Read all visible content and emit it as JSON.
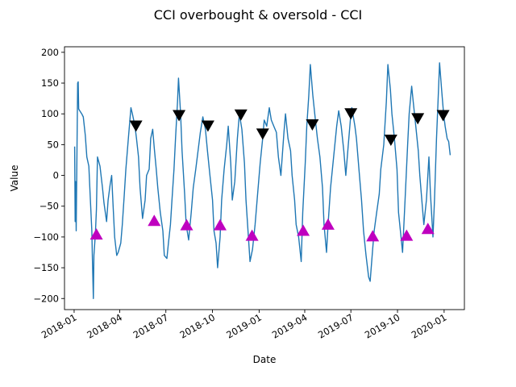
{
  "chart_data": {
    "type": "line",
    "title": "CCI overbought & oversold - CCI",
    "xlabel": "Date",
    "ylabel": "Value",
    "ylim": [
      -218,
      209
    ],
    "xlim": [
      "2017-12-13",
      "2020-02-10"
    ],
    "yticks": [
      200,
      150,
      100,
      50,
      0,
      -50,
      -100,
      -150,
      -200
    ],
    "xticks": [
      {
        "date": "2018-01-01",
        "label": "2018-01"
      },
      {
        "date": "2018-04-01",
        "label": "2018-04"
      },
      {
        "date": "2018-07-01",
        "label": "2018-07"
      },
      {
        "date": "2018-10-01",
        "label": "2018-10"
      },
      {
        "date": "2019-01-01",
        "label": "2019-01"
      },
      {
        "date": "2019-04-01",
        "label": "2019-04"
      },
      {
        "date": "2019-07-01",
        "label": "2019-07"
      },
      {
        "date": "2019-10-01",
        "label": "2019-10"
      },
      {
        "date": "2020-01-01",
        "label": "2020-01"
      }
    ],
    "grid": false,
    "colors": {
      "line": "#1f77b4",
      "overbought": "#000000",
      "oversold": "#bf00bf"
    },
    "series": [
      {
        "values": [
          [
            "2018-01-02",
            47
          ],
          [
            "2018-01-03",
            -75
          ],
          [
            "2018-01-04",
            -10
          ],
          [
            "2018-01-05",
            -90
          ],
          [
            "2018-01-08",
            150
          ],
          [
            "2018-01-09",
            152
          ],
          [
            "2018-01-10",
            108
          ],
          [
            "2018-01-12",
            105
          ],
          [
            "2018-01-16",
            100
          ],
          [
            "2018-01-19",
            95
          ],
          [
            "2018-01-23",
            65
          ],
          [
            "2018-01-26",
            30
          ],
          [
            "2018-01-30",
            15
          ],
          [
            "2018-02-02",
            -40
          ],
          [
            "2018-02-05",
            -90
          ],
          [
            "2018-02-06",
            -135
          ],
          [
            "2018-02-08",
            -200
          ],
          [
            "2018-02-09",
            -130
          ],
          [
            "2018-02-12",
            -95
          ],
          [
            "2018-02-14",
            -55
          ],
          [
            "2018-02-16",
            30
          ],
          [
            "2018-02-21",
            15
          ],
          [
            "2018-02-26",
            -20
          ],
          [
            "2018-03-01",
            -45
          ],
          [
            "2018-03-06",
            -75
          ],
          [
            "2018-03-09",
            -40
          ],
          [
            "2018-03-13",
            -15
          ],
          [
            "2018-03-16",
            0
          ],
          [
            "2018-03-19",
            -50
          ],
          [
            "2018-03-22",
            -100
          ],
          [
            "2018-03-26",
            -130
          ],
          [
            "2018-03-29",
            -125
          ],
          [
            "2018-04-03",
            -110
          ],
          [
            "2018-04-06",
            -80
          ],
          [
            "2018-04-10",
            -30
          ],
          [
            "2018-04-13",
            10
          ],
          [
            "2018-04-18",
            60
          ],
          [
            "2018-04-23",
            110
          ],
          [
            "2018-04-26",
            100
          ],
          [
            "2018-05-01",
            80
          ],
          [
            "2018-05-04",
            60
          ],
          [
            "2018-05-08",
            30
          ],
          [
            "2018-05-11",
            -20
          ],
          [
            "2018-05-16",
            -70
          ],
          [
            "2018-05-21",
            -40
          ],
          [
            "2018-05-24",
            0
          ],
          [
            "2018-05-29",
            10
          ],
          [
            "2018-06-01",
            60
          ],
          [
            "2018-06-05",
            75
          ],
          [
            "2018-06-08",
            45
          ],
          [
            "2018-06-12",
            10
          ],
          [
            "2018-06-15",
            -20
          ],
          [
            "2018-06-20",
            -60
          ],
          [
            "2018-06-25",
            -90
          ],
          [
            "2018-06-28",
            -130
          ],
          [
            "2018-07-03",
            -135
          ],
          [
            "2018-07-06",
            -110
          ],
          [
            "2018-07-10",
            -80
          ],
          [
            "2018-07-13",
            -40
          ],
          [
            "2018-07-17",
            10
          ],
          [
            "2018-07-20",
            60
          ],
          [
            "2018-07-24",
            120
          ],
          [
            "2018-07-26",
            158
          ],
          [
            "2018-07-30",
            100
          ],
          [
            "2018-08-02",
            40
          ],
          [
            "2018-08-07",
            -30
          ],
          [
            "2018-08-10",
            -80
          ],
          [
            "2018-08-15",
            -105
          ],
          [
            "2018-08-20",
            -60
          ],
          [
            "2018-08-24",
            -20
          ],
          [
            "2018-08-29",
            10
          ],
          [
            "2018-09-04",
            50
          ],
          [
            "2018-09-07",
            70
          ],
          [
            "2018-09-12",
            95
          ],
          [
            "2018-09-17",
            75
          ],
          [
            "2018-09-21",
            40
          ],
          [
            "2018-09-26",
            0
          ],
          [
            "2018-10-01",
            -40
          ],
          [
            "2018-10-04",
            -90
          ],
          [
            "2018-10-08",
            -110
          ],
          [
            "2018-10-11",
            -150
          ],
          [
            "2018-10-16",
            -100
          ],
          [
            "2018-10-19",
            -40
          ],
          [
            "2018-10-24",
            10
          ],
          [
            "2018-10-29",
            50
          ],
          [
            "2018-11-01",
            80
          ],
          [
            "2018-11-06",
            20
          ],
          [
            "2018-11-09",
            -40
          ],
          [
            "2018-11-14",
            -10
          ],
          [
            "2018-11-19",
            60
          ],
          [
            "2018-11-23",
            100
          ],
          [
            "2018-11-28",
            75
          ],
          [
            "2018-12-03",
            20
          ],
          [
            "2018-12-06",
            -40
          ],
          [
            "2018-12-10",
            -90
          ],
          [
            "2018-12-14",
            -140
          ],
          [
            "2018-12-19",
            -120
          ],
          [
            "2018-12-24",
            -80
          ],
          [
            "2018-12-28",
            -40
          ],
          [
            "2019-01-03",
            20
          ],
          [
            "2019-01-08",
            60
          ],
          [
            "2019-01-11",
            90
          ],
          [
            "2019-01-16",
            80
          ],
          [
            "2019-01-21",
            110
          ],
          [
            "2019-01-25",
            90
          ],
          [
            "2019-01-30",
            80
          ],
          [
            "2019-02-04",
            70
          ],
          [
            "2019-02-08",
            30
          ],
          [
            "2019-02-13",
            0
          ],
          [
            "2019-02-19",
            70
          ],
          [
            "2019-02-22",
            100
          ],
          [
            "2019-02-27",
            60
          ],
          [
            "2019-03-04",
            40
          ],
          [
            "2019-03-07",
            0
          ],
          [
            "2019-03-12",
            -40
          ],
          [
            "2019-03-15",
            -80
          ],
          [
            "2019-03-20",
            -100
          ],
          [
            "2019-03-25",
            -140
          ],
          [
            "2019-03-28",
            -60
          ],
          [
            "2019-04-02",
            20
          ],
          [
            "2019-04-05",
            80
          ],
          [
            "2019-04-09",
            130
          ],
          [
            "2019-04-12",
            180
          ],
          [
            "2019-04-17",
            130
          ],
          [
            "2019-04-22",
            90
          ],
          [
            "2019-04-26",
            60
          ],
          [
            "2019-05-01",
            30
          ],
          [
            "2019-05-06",
            -20
          ],
          [
            "2019-05-09",
            -80
          ],
          [
            "2019-05-14",
            -125
          ],
          [
            "2019-05-17",
            -80
          ],
          [
            "2019-05-22",
            -20
          ],
          [
            "2019-05-28",
            30
          ],
          [
            "2019-06-03",
            80
          ],
          [
            "2019-06-07",
            105
          ],
          [
            "2019-06-12",
            80
          ],
          [
            "2019-06-17",
            40
          ],
          [
            "2019-06-21",
            0
          ],
          [
            "2019-06-26",
            50
          ],
          [
            "2019-07-01",
            100
          ],
          [
            "2019-07-03",
            110
          ],
          [
            "2019-07-09",
            80
          ],
          [
            "2019-07-12",
            60
          ],
          [
            "2019-07-17",
            10
          ],
          [
            "2019-07-22",
            -40
          ],
          [
            "2019-07-26",
            -90
          ],
          [
            "2019-07-31",
            -130
          ],
          [
            "2019-08-05",
            -165
          ],
          [
            "2019-08-08",
            -172
          ],
          [
            "2019-08-13",
            -120
          ],
          [
            "2019-08-16",
            -90
          ],
          [
            "2019-08-21",
            -60
          ],
          [
            "2019-08-26",
            -30
          ],
          [
            "2019-08-29",
            10
          ],
          [
            "2019-09-04",
            50
          ],
          [
            "2019-09-09",
            120
          ],
          [
            "2019-09-12",
            180
          ],
          [
            "2019-09-17",
            140
          ],
          [
            "2019-09-20",
            100
          ],
          [
            "2019-09-25",
            60
          ],
          [
            "2019-09-30",
            10
          ],
          [
            "2019-10-03",
            -60
          ],
          [
            "2019-10-08",
            -100
          ],
          [
            "2019-10-11",
            -125
          ],
          [
            "2019-10-16",
            -40
          ],
          [
            "2019-10-21",
            50
          ],
          [
            "2019-10-24",
            100
          ],
          [
            "2019-10-29",
            145
          ],
          [
            "2019-11-01",
            120
          ],
          [
            "2019-11-06",
            80
          ],
          [
            "2019-11-11",
            40
          ],
          [
            "2019-11-14",
            0
          ],
          [
            "2019-11-19",
            -50
          ],
          [
            "2019-11-22",
            -80
          ],
          [
            "2019-11-27",
            -40
          ],
          [
            "2019-12-02",
            30
          ],
          [
            "2019-12-05",
            -30
          ],
          [
            "2019-12-10",
            -100
          ],
          [
            "2019-12-13",
            -40
          ],
          [
            "2019-12-17",
            60
          ],
          [
            "2019-12-20",
            120
          ],
          [
            "2019-12-23",
            183
          ],
          [
            "2019-12-27",
            140
          ],
          [
            "2019-12-31",
            100
          ],
          [
            "2020-01-03",
            80
          ],
          [
            "2020-01-07",
            60
          ],
          [
            "2020-01-10",
            55
          ],
          [
            "2020-01-13",
            33
          ]
        ]
      }
    ],
    "overbought_markers": [
      [
        "2018-05-03",
        80
      ],
      [
        "2018-07-27",
        97
      ],
      [
        "2018-09-22",
        80
      ],
      [
        "2018-11-26",
        98
      ],
      [
        "2019-01-08",
        67
      ],
      [
        "2019-04-16",
        82
      ],
      [
        "2019-07-01",
        100
      ],
      [
        "2019-09-18",
        57
      ],
      [
        "2019-11-10",
        92
      ],
      [
        "2019-12-30",
        97
      ]
    ],
    "oversold_markers": [
      [
        "2018-02-14",
        -95
      ],
      [
        "2018-06-08",
        -73
      ],
      [
        "2018-08-11",
        -80
      ],
      [
        "2018-10-16",
        -80
      ],
      [
        "2018-12-18",
        -97
      ],
      [
        "2019-03-29",
        -89
      ],
      [
        "2019-05-17",
        -79
      ],
      [
        "2019-08-13",
        -98
      ],
      [
        "2019-10-19",
        -97
      ],
      [
        "2019-11-30",
        -86
      ]
    ]
  }
}
